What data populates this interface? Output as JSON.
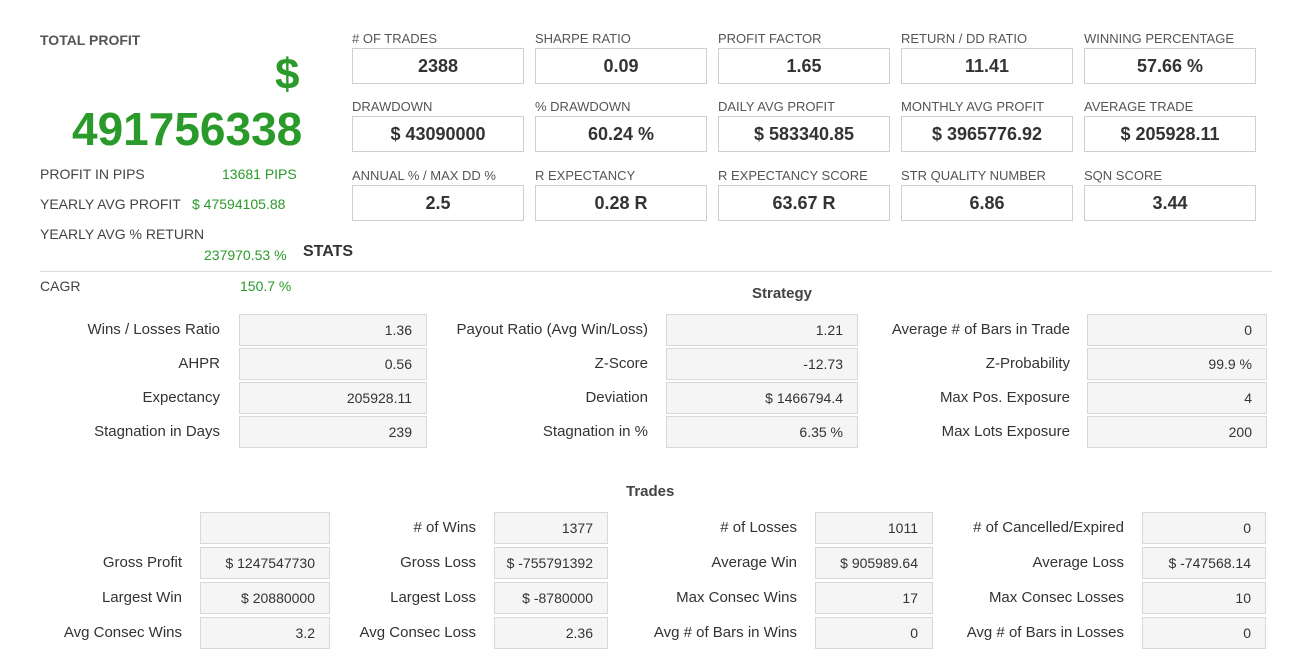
{
  "left": {
    "title": "TOTAL PROFIT",
    "dollar": "$",
    "total": "491756338",
    "rows": [
      {
        "label": "PROFIT IN PIPS",
        "value": "13681 PIPS"
      },
      {
        "label": "YEARLY AVG PROFIT",
        "value": "$ 47594105.88"
      },
      {
        "label": "YEARLY AVG % RETURN",
        "value": "237970.53 %"
      },
      {
        "label": "CAGR",
        "value": "150.7 %"
      }
    ]
  },
  "metrics": [
    {
      "label": "# OF TRADES",
      "value": "2388"
    },
    {
      "label": "SHARPE RATIO",
      "value": "0.09"
    },
    {
      "label": "PROFIT FACTOR",
      "value": "1.65"
    },
    {
      "label": "RETURN / DD RATIO",
      "value": "11.41"
    },
    {
      "label": "WINNING PERCENTAGE",
      "value": "57.66 %"
    },
    {
      "label": "DRAWDOWN",
      "value": "$ 43090000"
    },
    {
      "label": "% DRAWDOWN",
      "value": "60.24 %"
    },
    {
      "label": "DAILY AVG PROFIT",
      "value": "$ 583340.85"
    },
    {
      "label": "MONTHLY AVG PROFIT",
      "value": "$ 3965776.92"
    },
    {
      "label": "AVERAGE TRADE",
      "value": "$ 205928.11"
    },
    {
      "label": "ANNUAL % / MAX DD %",
      "value": "2.5"
    },
    {
      "label": "R EXPECTANCY",
      "value": "0.28 R"
    },
    {
      "label": "R EXPECTANCY SCORE",
      "value": "63.67 R"
    },
    {
      "label": "STR QUALITY NUMBER",
      "value": "6.86"
    },
    {
      "label": "SQN SCORE",
      "value": "3.44"
    }
  ],
  "stats_title": "STATS",
  "strategy": {
    "title": "Strategy",
    "rows": [
      [
        {
          "label": "Wins / Losses Ratio",
          "value": "1.36"
        },
        {
          "label": "Payout Ratio (Avg Win/Loss)",
          "value": "1.21"
        },
        {
          "label": "Average # of Bars in Trade",
          "value": "0"
        }
      ],
      [
        {
          "label": "AHPR",
          "value": "0.56"
        },
        {
          "label": "Z-Score",
          "value": "-12.73"
        },
        {
          "label": "Z-Probability",
          "value": "99.9 %"
        }
      ],
      [
        {
          "label": "Expectancy",
          "value": "205928.11"
        },
        {
          "label": "Deviation",
          "value": "$ 1466794.4"
        },
        {
          "label": "Max Pos. Exposure",
          "value": "4"
        }
      ],
      [
        {
          "label": "Stagnation in Days",
          "value": "239"
        },
        {
          "label": "Stagnation in %",
          "value": "6.35 %"
        },
        {
          "label": "Max Lots Exposure",
          "value": "200"
        }
      ]
    ]
  },
  "trades": {
    "title": "Trades",
    "rows": [
      [
        {
          "label": "",
          "value": ""
        },
        {
          "label": "# of Wins",
          "value": "1377"
        },
        {
          "label": "# of Losses",
          "value": "1011"
        },
        {
          "label": "# of Cancelled/Expired",
          "value": "0"
        }
      ],
      [
        {
          "label": "Gross Profit",
          "value": "$ 1247547730"
        },
        {
          "label": "Gross Loss",
          "value": "$ -755791392"
        },
        {
          "label": "Average Win",
          "value": "$ 905989.64"
        },
        {
          "label": "Average Loss",
          "value": "$ -747568.14"
        }
      ],
      [
        {
          "label": "Largest Win",
          "value": "$ 20880000"
        },
        {
          "label": "Largest Loss",
          "value": "$ -8780000"
        },
        {
          "label": "Max Consec Wins",
          "value": "17"
        },
        {
          "label": "Max Consec Losses",
          "value": "10"
        }
      ],
      [
        {
          "label": "Avg Consec Wins",
          "value": "3.2"
        },
        {
          "label": "Avg Consec Loss",
          "value": "2.36"
        },
        {
          "label": "Avg # of Bars in Wins",
          "value": "0"
        },
        {
          "label": "Avg # of Bars in Losses",
          "value": "0"
        }
      ]
    ]
  },
  "colors": {
    "profit_green": "#2a9a2a",
    "border": "#cfcfcf",
    "cell_bg": "#f5f5f5"
  }
}
